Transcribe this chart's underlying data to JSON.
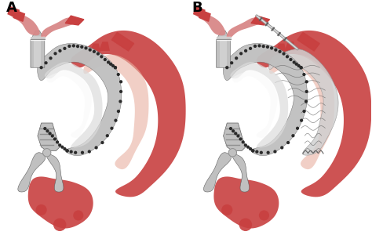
{
  "label_A": "A",
  "label_B": "B",
  "bg": "#ffffff",
  "red_dark": "#b83030",
  "red_mid": "#c84040",
  "red_light": "#d88888",
  "red_pale": "#e8b0a0",
  "gray_dark": "#606060",
  "gray_mid": "#909090",
  "gray_light": "#c0c0c0",
  "gray_pale": "#dcdcdc",
  "white": "#f8f8f8",
  "suture": "#2a2a2a",
  "fig_width": 4.74,
  "fig_height": 3.14,
  "dpi": 100
}
